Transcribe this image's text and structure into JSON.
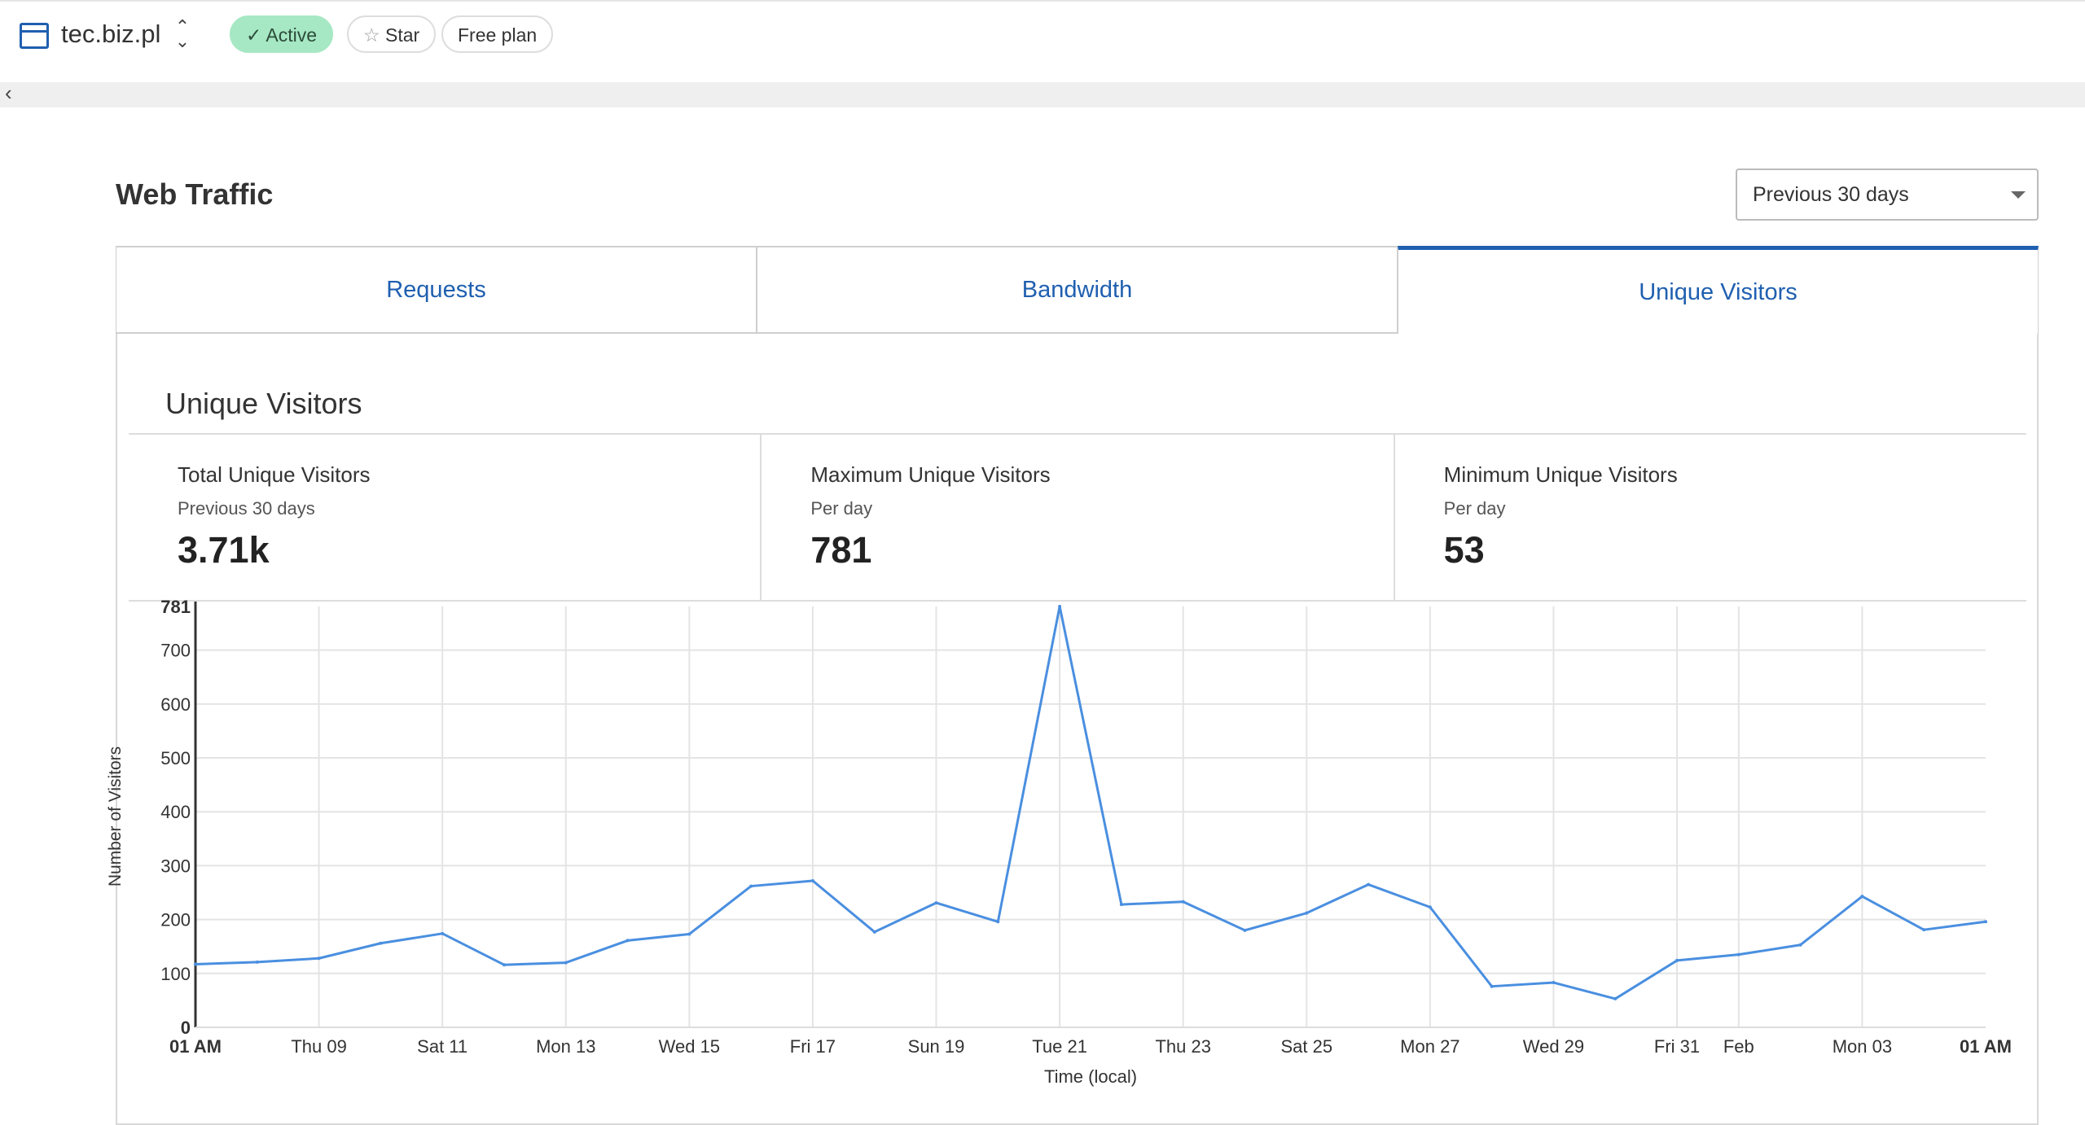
{
  "header": {
    "site": "tec.biz.pl",
    "status": "Active",
    "star": "Star",
    "plan": "Free plan"
  },
  "page": {
    "title": "Web Traffic",
    "range": "Previous 30 days"
  },
  "tabs": [
    {
      "label": "Requests"
    },
    {
      "label": "Bandwidth"
    },
    {
      "label": "Unique Visitors"
    }
  ],
  "section": {
    "title": "Unique Visitors"
  },
  "stats": [
    {
      "label": "Total Unique Visitors",
      "sub": "Previous 30 days",
      "value": "3.71k"
    },
    {
      "label": "Maximum Unique Visitors",
      "sub": "Per day",
      "value": "781"
    },
    {
      "label": "Minimum Unique Visitors",
      "sub": "Per day",
      "value": "53"
    }
  ],
  "colors": {
    "accent": "#1f5fb0",
    "line": "#4a8fe0",
    "active": "#a6e8c4"
  },
  "chart_data": {
    "type": "line",
    "xlabel": "Time (local)",
    "ylabel": "Number of Visitors",
    "ylim": [
      0,
      781
    ],
    "yticks": [
      0,
      100,
      200,
      300,
      400,
      500,
      600,
      700,
      781
    ],
    "values": [
      117,
      121,
      128,
      156,
      174,
      116,
      120,
      161,
      173,
      262,
      272,
      177,
      231,
      196,
      781,
      228,
      233,
      180,
      212,
      265,
      223,
      76,
      83,
      53,
      124,
      135,
      153,
      243,
      181,
      196
    ],
    "xticks": [
      {
        "i": 0,
        "label": "01 AM",
        "bold": true
      },
      {
        "i": 2,
        "label": "Thu 09"
      },
      {
        "i": 4,
        "label": "Sat 11"
      },
      {
        "i": 6,
        "label": "Mon 13"
      },
      {
        "i": 8,
        "label": "Wed 15"
      },
      {
        "i": 10,
        "label": "Fri 17"
      },
      {
        "i": 12,
        "label": "Sun 19"
      },
      {
        "i": 14,
        "label": "Tue 21"
      },
      {
        "i": 16,
        "label": "Thu 23"
      },
      {
        "i": 18,
        "label": "Sat 25"
      },
      {
        "i": 20,
        "label": "Mon 27"
      },
      {
        "i": 22,
        "label": "Wed 29"
      },
      {
        "i": 24,
        "label": "Fri 31"
      },
      {
        "i": 25,
        "label": "Feb"
      },
      {
        "i": 27,
        "label": "Mon 03"
      },
      {
        "i": 29,
        "label": "01 AM",
        "bold": true
      }
    ],
    "grid": true,
    "legend": "none"
  }
}
